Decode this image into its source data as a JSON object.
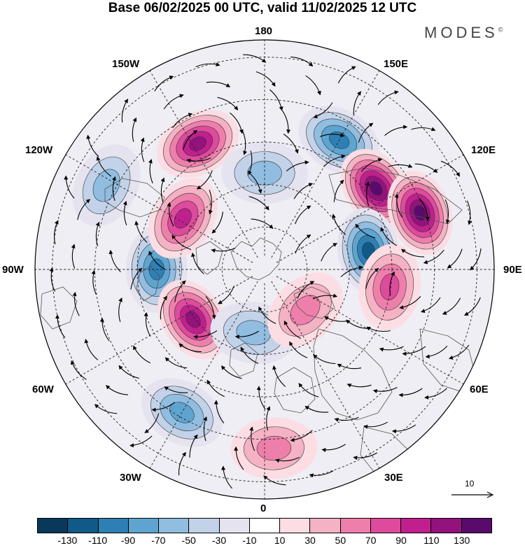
{
  "title": "Base 06/02/2025 00 UTC, valid 11/02/2025 12 UTC",
  "brand": "MODES",
  "brand_mark": "©",
  "longitude_labels": {
    "lon_180": "180",
    "lon_150e": "150E",
    "lon_120e": "120E",
    "lon_90e": "90E",
    "lon_60e": "60E",
    "lon_30e": "30E",
    "lon_0": "0",
    "lon_30w": "30W",
    "lon_60w": "60W",
    "lon_90w": "90W",
    "lon_120w": "120W",
    "lon_150w": "150W"
  },
  "reference_vector": {
    "label": "10"
  },
  "colorbar": {
    "colors": [
      "#08385a",
      "#0f5a88",
      "#2e7fb4",
      "#5ea4d0",
      "#90bde0",
      "#c2d2e8",
      "#e5e3f0",
      "#ffffff",
      "#fbdde3",
      "#f4b2c4",
      "#ee7fab",
      "#de4b9c",
      "#c0208e",
      "#93127c",
      "#5a0a6c"
    ],
    "tick_labels": [
      "-130",
      "-110",
      "-90",
      "-70",
      "-50",
      "-30",
      "-10",
      "10",
      "30",
      "50",
      "70",
      "90",
      "110",
      "130"
    ]
  },
  "map_features": {
    "domain_boundary": "circle",
    "coastlines": true,
    "graticule": "dashed",
    "streamlines": true,
    "anomaly_blobs": [
      {
        "lon": -152,
        "dist": 0.62,
        "value": 115
      },
      {
        "lon": 150,
        "dist": 0.65,
        "value": -95
      },
      {
        "lon": 126,
        "dist": 0.6,
        "value": 125
      },
      {
        "lon": 110,
        "dist": 0.72,
        "value": 120
      },
      {
        "lon": 100,
        "dist": 0.46,
        "value": -100
      },
      {
        "lon": 82,
        "dist": 0.55,
        "value": 70
      },
      {
        "lon": -90,
        "dist": 0.47,
        "value": -80
      },
      {
        "lon": -122,
        "dist": 0.42,
        "value": 95
      },
      {
        "lon": -55,
        "dist": 0.38,
        "value": 105
      },
      {
        "lon": -180,
        "dist": 0.42,
        "value": -55
      },
      {
        "lon": -118,
        "dist": 0.78,
        "value": -55
      },
      {
        "lon": -30,
        "dist": 0.72,
        "value": -70
      },
      {
        "lon": 3,
        "dist": 0.78,
        "value": 45
      },
      {
        "lon": -10,
        "dist": 0.28,
        "value": -45
      },
      {
        "lon": 45,
        "dist": 0.25,
        "value": 45
      }
    ]
  }
}
